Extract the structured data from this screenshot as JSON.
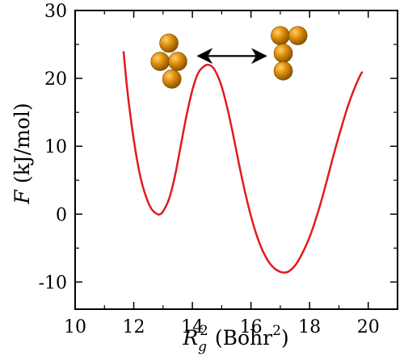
{
  "chart_data": {
    "type": "line",
    "xlabel": {
      "symbol": "R",
      "sub": "g",
      "sup": "2",
      "rest": " (Bohr",
      "unit_sup": "2",
      "close": ")"
    },
    "ylabel": {
      "symbol": "F",
      "rest": " (kJ/mol)"
    },
    "xlim": [
      10,
      21
    ],
    "ylim": [
      -14,
      30
    ],
    "xticks": [
      10,
      12,
      14,
      16,
      18,
      20
    ],
    "xtick_labels": [
      "10",
      "12",
      "14",
      "16",
      "18",
      "20"
    ],
    "yticks": [
      -10,
      0,
      10,
      20,
      30
    ],
    "ytick_labels": [
      "-10",
      "0",
      "10",
      "20",
      "30"
    ],
    "grid": false,
    "series": [
      {
        "color": "#e41a1c",
        "x": [
          11.65,
          11.8,
          12.0,
          12.2,
          12.4,
          12.6,
          12.8,
          12.9,
          13.0,
          13.2,
          13.4,
          13.6,
          13.8,
          14.0,
          14.2,
          14.4,
          14.55,
          14.7,
          14.85,
          15.0,
          15.2,
          15.4,
          15.6,
          15.8,
          16.0,
          16.2,
          16.4,
          16.6,
          16.8,
          17.0,
          17.15,
          17.3,
          17.5,
          17.7,
          17.9,
          18.1,
          18.3,
          18.5,
          18.7,
          18.9,
          19.1,
          19.3,
          19.5,
          19.7,
          19.8
        ],
        "y": [
          24.0,
          17.5,
          11.0,
          6.0,
          2.8,
          0.8,
          0.0,
          0.0,
          0.4,
          2.2,
          5.5,
          10.0,
          14.5,
          18.3,
          20.8,
          21.8,
          22.0,
          21.6,
          20.5,
          18.8,
          15.5,
          11.5,
          7.2,
          3.2,
          -0.3,
          -3.2,
          -5.4,
          -7.0,
          -8.0,
          -8.5,
          -8.6,
          -8.4,
          -7.6,
          -6.2,
          -4.4,
          -2.2,
          0.5,
          3.5,
          6.8,
          10.0,
          13.0,
          15.8,
          18.2,
          20.2,
          21.0
        ]
      }
    ],
    "annotation": {
      "type": "double-arrow",
      "x": [
        14.2,
        16.5
      ],
      "y": 23.3,
      "color": "#000000"
    },
    "insets": {
      "sphere_color": "#e0900a",
      "sphere_dark": "#8a5200",
      "sphere_light": "#ffd070",
      "compact_cluster": {
        "name": "compact-cluster",
        "spheres": [
          [
            13.2,
            25.2
          ],
          [
            12.9,
            22.5
          ],
          [
            13.5,
            22.5
          ],
          [
            13.3,
            19.9
          ]
        ]
      },
      "elongated_cluster": {
        "name": "elongated-cluster",
        "spheres": [
          [
            17.0,
            26.3
          ],
          [
            17.6,
            26.3
          ],
          [
            17.1,
            23.7
          ],
          [
            17.1,
            21.1
          ]
        ]
      }
    }
  }
}
